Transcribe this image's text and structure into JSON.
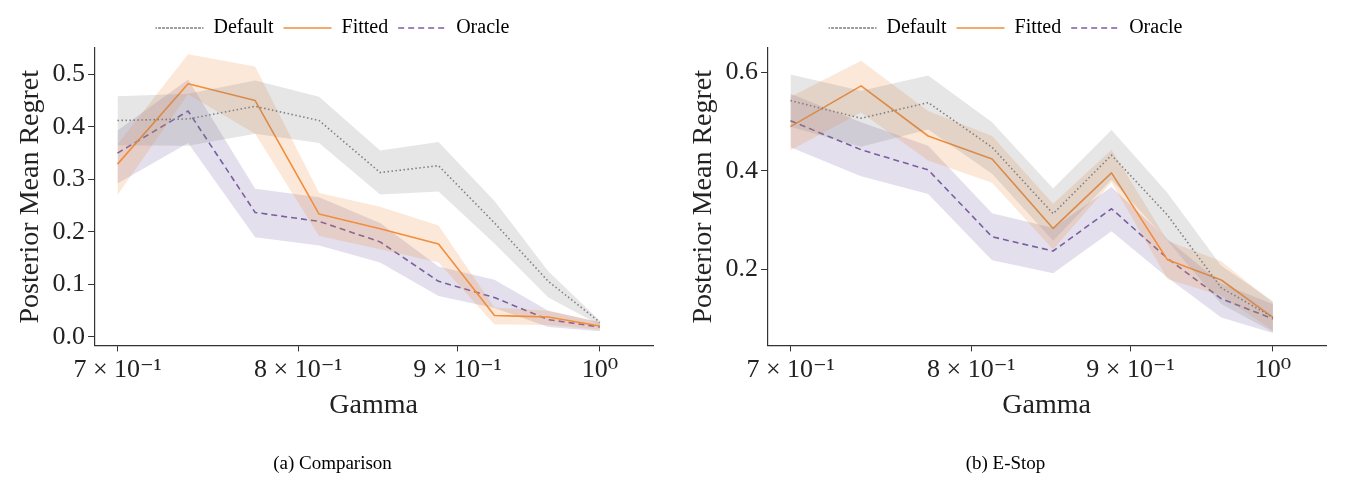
{
  "chart_data": [
    {
      "type": "line",
      "title": "(a) Comparison",
      "xlabel": "Gamma",
      "ylabel": "Posterior Mean Regret",
      "log": "x",
      "grid": false,
      "legend": "top",
      "marker": "none",
      "x": [
        0.7,
        0.7375,
        0.775,
        0.8125,
        0.85,
        0.8875,
        0.925,
        0.9625,
        1.0
      ],
      "xlim": [
        0.688,
        1.04
      ],
      "xticks": [
        {
          "value": 0.7,
          "label": "7 × 10⁻¹"
        },
        {
          "value": 0.8,
          "label": "8 × 10⁻¹"
        },
        {
          "value": 0.9,
          "label": "9 × 10⁻¹"
        },
        {
          "value": 1.0,
          "label": "10⁰"
        }
      ],
      "ylim": [
        -0.016,
        0.55
      ],
      "yticks": [
        {
          "value": 0,
          "label": "0.0"
        },
        0.1,
        0.2,
        0.3,
        0.4,
        0.5
      ],
      "series": [
        {
          "name": "Default",
          "color": "#808080",
          "line_style": "dotted",
          "values": [
            0.412,
            0.415,
            0.439,
            0.412,
            0.313,
            0.326,
            0.217,
            0.106,
            0.028
          ],
          "upper": [
            0.458,
            0.463,
            0.488,
            0.457,
            0.355,
            0.371,
            0.259,
            0.125,
            0.031
          ],
          "lower": [
            0.365,
            0.364,
            0.387,
            0.369,
            0.271,
            0.277,
            0.178,
            0.075,
            0.023
          ]
        },
        {
          "name": "Fitted",
          "color": "#f28e3b",
          "line_style": "solid",
          "values": [
            0.329,
            0.482,
            0.45,
            0.234,
            0.206,
            0.177,
            0.041,
            0.038,
            0.021
          ],
          "upper": [
            0.367,
            0.538,
            0.515,
            0.274,
            0.248,
            0.212,
            0.056,
            0.05,
            0.028
          ],
          "lower": [
            0.27,
            0.462,
            0.387,
            0.192,
            0.167,
            0.142,
            0.024,
            0.023,
            0.014
          ]
        },
        {
          "name": "Oracle",
          "color": "#7a5fa0",
          "line_style": "dashed",
          "values": [
            0.35,
            0.43,
            0.237,
            0.22,
            0.181,
            0.106,
            0.075,
            0.033,
            0.019
          ],
          "upper": [
            0.393,
            0.49,
            0.282,
            0.266,
            0.217,
            0.134,
            0.109,
            0.05,
            0.028
          ],
          "lower": [
            0.292,
            0.369,
            0.19,
            0.174,
            0.142,
            0.078,
            0.055,
            0.019,
            0.011
          ]
        }
      ]
    },
    {
      "type": "line",
      "title": "(b) E-Stop",
      "xlabel": "Gamma",
      "ylabel": "Posterior Mean Regret",
      "log": "x",
      "grid": false,
      "legend": "top",
      "marker": "none",
      "x": [
        0.7,
        0.7375,
        0.775,
        0.8125,
        0.85,
        0.8875,
        0.925,
        0.9625,
        1.0
      ],
      "xlim": [
        0.688,
        1.04
      ],
      "xticks": [
        {
          "value": 0.7,
          "label": "7 × 10⁻¹"
        },
        {
          "value": 0.8,
          "label": "8 × 10⁻¹"
        },
        {
          "value": 0.9,
          "label": "9 × 10⁻¹"
        },
        {
          "value": 1.0,
          "label": "10⁰"
        }
      ],
      "ylim": [
        0.045,
        0.65
      ],
      "yticks": [
        0.2,
        0.4,
        0.6
      ],
      "series": [
        {
          "name": "Default",
          "color": "#808080",
          "line_style": "dotted",
          "values": [
            0.543,
            0.507,
            0.539,
            0.448,
            0.313,
            0.432,
            0.31,
            0.162,
            0.102
          ],
          "upper": [
            0.596,
            0.563,
            0.594,
            0.499,
            0.364,
            0.483,
            0.355,
            0.207,
            0.135
          ],
          "lower": [
            0.49,
            0.449,
            0.484,
            0.394,
            0.258,
            0.382,
            0.258,
            0.129,
            0.072
          ]
        },
        {
          "name": "Fitted",
          "color": "#f28e3b",
          "line_style": "solid",
          "values": [
            0.49,
            0.573,
            0.471,
            0.424,
            0.283,
            0.396,
            0.219,
            0.178,
            0.102
          ],
          "upper": [
            0.551,
            0.624,
            0.522,
            0.471,
            0.333,
            0.443,
            0.258,
            0.216,
            0.132
          ],
          "lower": [
            0.442,
            0.519,
            0.421,
            0.376,
            0.24,
            0.377,
            0.18,
            0.146,
            0.075
          ]
        },
        {
          "name": "Oracle",
          "color": "#7a5fa0",
          "line_style": "dashed",
          "values": [
            0.502,
            0.443,
            0.402,
            0.266,
            0.237,
            0.323,
            0.222,
            0.14,
            0.099
          ],
          "upper": [
            0.557,
            0.499,
            0.451,
            0.314,
            0.284,
            0.367,
            0.261,
            0.171,
            0.129
          ],
          "lower": [
            0.448,
            0.389,
            0.353,
            0.218,
            0.192,
            0.277,
            0.183,
            0.102,
            0.07
          ]
        }
      ]
    }
  ]
}
